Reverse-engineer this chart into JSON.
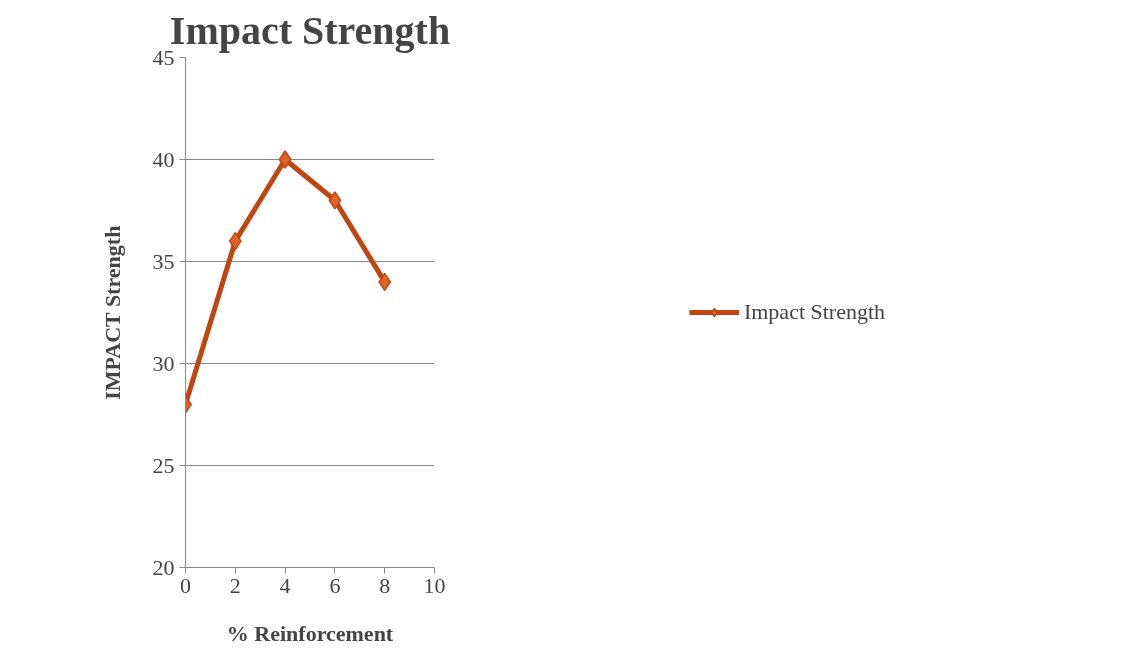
{
  "chart_data": {
    "type": "line",
    "title": "Impact Strength",
    "xlabel": "% Reinforcement",
    "ylabel": "IMPACT Strength",
    "x": [
      0,
      2,
      4,
      6,
      8
    ],
    "series": [
      {
        "name": "Impact Strength",
        "color": "#c0450f",
        "values": [
          28,
          36,
          40,
          38,
          34
        ]
      }
    ],
    "xlim": [
      0,
      10
    ],
    "xticks": [
      0,
      2,
      4,
      6,
      8,
      10
    ],
    "ylim": [
      20,
      45
    ],
    "yticks": [
      20,
      25,
      30,
      35,
      40,
      45
    ],
    "grid": "y",
    "legend": "right",
    "marker": "diamond",
    "line_style": "solid"
  }
}
